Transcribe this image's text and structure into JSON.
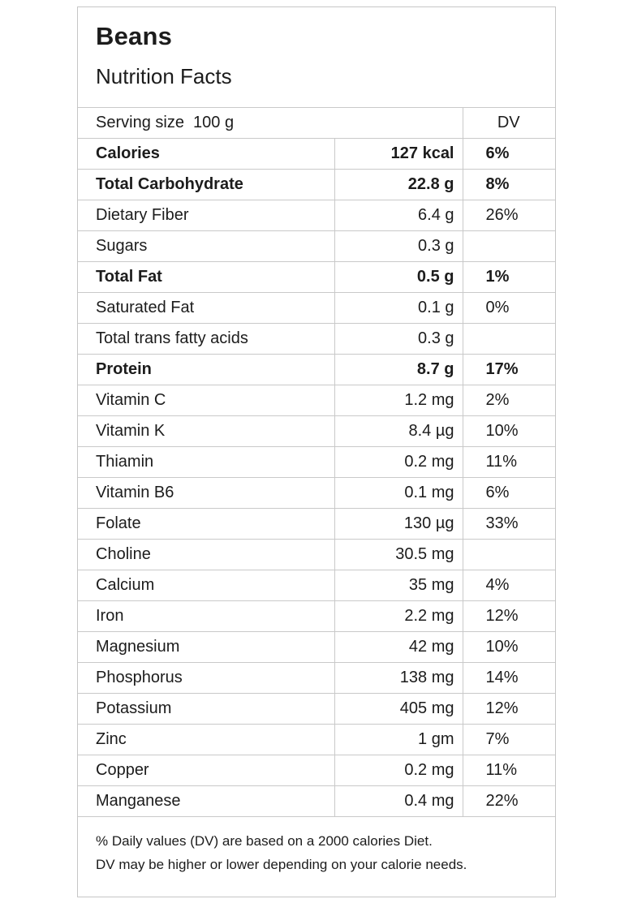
{
  "page": {
    "title": "Beans",
    "subtitle": "Nutrition Facts"
  },
  "table": {
    "serving_label": "Serving size  100 g",
    "dv_header": "DV",
    "rows": [
      {
        "name": "Calories",
        "value": "127 kcal",
        "dv": "6%",
        "bold": true
      },
      {
        "name": "Total Carbohydrate",
        "value": "22.8 g",
        "dv": "8%",
        "bold": true
      },
      {
        "name": "Dietary Fiber",
        "value": "6.4 g",
        "dv": "26%",
        "bold": false
      },
      {
        "name": "Sugars",
        "value": "0.3 g",
        "dv": "",
        "bold": false
      },
      {
        "name": "Total Fat",
        "value": "0.5 g",
        "dv": "1%",
        "bold": true
      },
      {
        "name": "Saturated Fat",
        "value": "0.1 g",
        "dv": "0%",
        "bold": false
      },
      {
        "name": "Total trans fatty acids",
        "value": "0.3 g",
        "dv": "",
        "bold": false
      },
      {
        "name": "Protein",
        "value": "8.7 g",
        "dv": "17%",
        "bold": true
      },
      {
        "name": "Vitamin C",
        "value": "1.2 mg",
        "dv": "2%",
        "bold": false
      },
      {
        "name": "Vitamin K",
        "value": "8.4 µg",
        "dv": "10%",
        "bold": false
      },
      {
        "name": "Thiamin",
        "value": "0.2 mg",
        "dv": "11%",
        "bold": false
      },
      {
        "name": "Vitamin B6",
        "value": "0.1 mg",
        "dv": "6%",
        "bold": false
      },
      {
        "name": "Folate",
        "value": "130 µg",
        "dv": "33%",
        "bold": false
      },
      {
        "name": "Choline",
        "value": "30.5 mg",
        "dv": "",
        "bold": false
      },
      {
        "name": "Calcium",
        "value": "35 mg",
        "dv": "4%",
        "bold": false
      },
      {
        "name": "Iron",
        "value": "2.2 mg",
        "dv": "12%",
        "bold": false
      },
      {
        "name": "Magnesium",
        "value": "42 mg",
        "dv": "10%",
        "bold": false
      },
      {
        "name": "Phosphorus",
        "value": "138 mg",
        "dv": "14%",
        "bold": false
      },
      {
        "name": "Potassium",
        "value": "405 mg",
        "dv": "12%",
        "bold": false
      },
      {
        "name": "Zinc",
        "value": "1 gm",
        "dv": "7%",
        "bold": false
      },
      {
        "name": "Copper",
        "value": "0.2 mg",
        "dv": "11%",
        "bold": false
      },
      {
        "name": "Manganese",
        "value": "0.4 mg",
        "dv": "22%",
        "bold": false
      }
    ]
  },
  "footer": {
    "line1": "% Daily values (DV) are based on a 2000 calories Diet.",
    "line2": "DV may be higher or lower depending on your calorie needs."
  }
}
